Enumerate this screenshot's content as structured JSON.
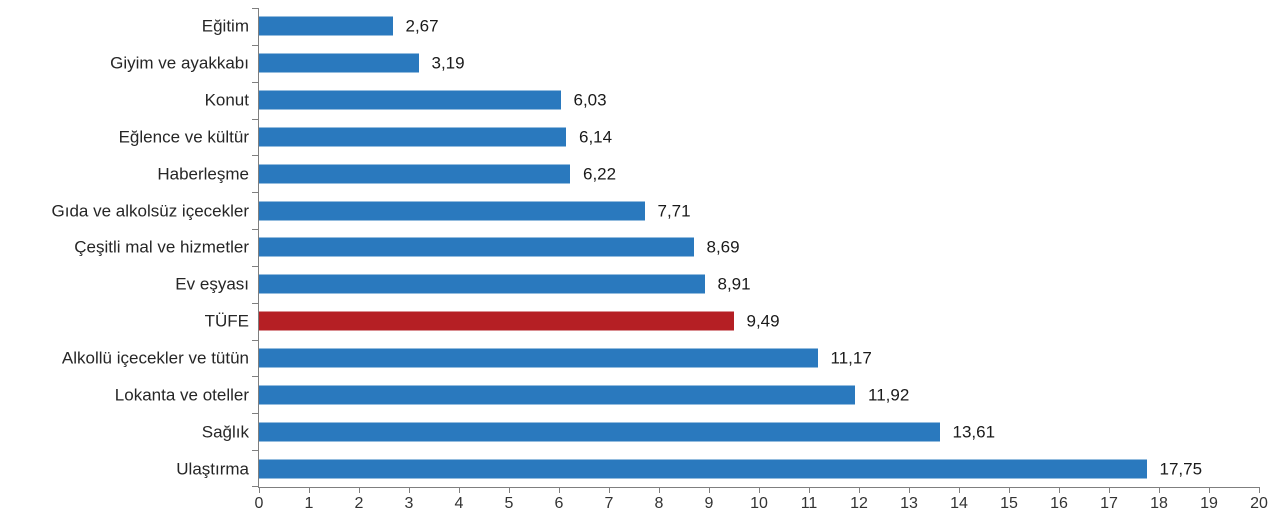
{
  "chart_data": {
    "type": "bar",
    "orientation": "horizontal",
    "categories": [
      "Eğitim",
      "Giyim ve ayakkabı",
      "Konut",
      "Eğlence ve kültür",
      "Haberleşme",
      "Gıda ve alkolsüz içecekler",
      "Çeşitli mal ve hizmetler",
      "Ev eşyası",
      "TÜFE",
      "Alkollü içecekler ve tütün",
      "Lokanta ve oteller",
      "Sağlık",
      "Ulaştırma"
    ],
    "values": [
      2.67,
      3.19,
      6.03,
      6.14,
      6.22,
      7.71,
      8.69,
      8.91,
      9.49,
      11.17,
      11.92,
      13.61,
      17.75
    ],
    "value_labels": [
      "2,67",
      "3,19",
      "6,03",
      "6,14",
      "6,22",
      "7,71",
      "8,69",
      "8,91",
      "9,49",
      "11,17",
      "11,92",
      "13,61",
      "17,75"
    ],
    "highlight_category": "TÜFE",
    "colors": {
      "bar": "#2a79be",
      "highlight": "#b51f24",
      "axis": "#7f7f7f",
      "category_text": "#262626",
      "value_text": "#1a1a1a",
      "tick_text": "#333333"
    },
    "xaxis": {
      "min": 0,
      "max": 20,
      "step": 1,
      "tick_labels": [
        "0",
        "1",
        "2",
        "3",
        "4",
        "5",
        "6",
        "7",
        "8",
        "9",
        "10",
        "11",
        "12",
        "13",
        "14",
        "15",
        "16",
        "17",
        "18",
        "19",
        "20"
      ]
    },
    "grid": false,
    "legend": null,
    "decimal_separator": ","
  }
}
